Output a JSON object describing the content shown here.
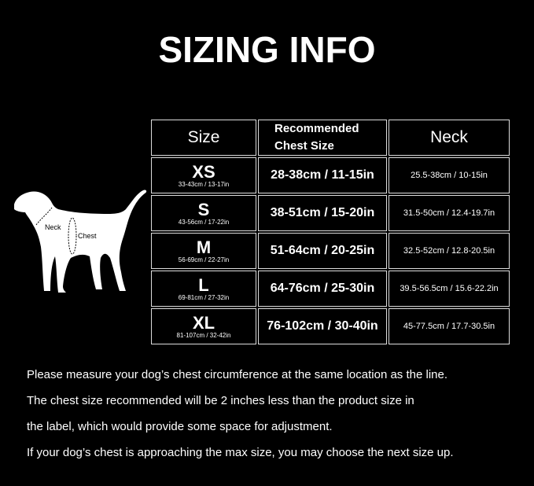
{
  "title": "SIZING INFO",
  "table": {
    "headers": [
      "Size",
      "Recommended Chest Size",
      "Neck"
    ],
    "header_recommended_line1": "Recommended",
    "header_recommended_line2": "Chest Size",
    "rows": [
      {
        "size": "XS",
        "range": "33-43cm / 13-17in",
        "chest": "28-38cm / 11-15in",
        "neck": "25.5-38cm / 10-15in"
      },
      {
        "size": "S",
        "range": "43-56cm / 17-22in",
        "chest": "38-51cm / 15-20in",
        "neck": "31.5-50cm / 12.4-19.7in"
      },
      {
        "size": "M",
        "range": "56-69cm / 22-27in",
        "chest": "51-64cm / 20-25in",
        "neck": "32.5-52cm / 12.8-20.5in"
      },
      {
        "size": "L",
        "range": "69-81cm / 27-32in",
        "chest": "64-76cm / 25-30in",
        "neck": "39.5-56.5cm / 15.6-22.2in"
      },
      {
        "size": "XL",
        "range": "81-107cm / 32-42in",
        "chest": "76-102cm / 30-40in",
        "neck": "45-77.5cm / 17.7-30.5in"
      }
    ]
  },
  "dog": {
    "neck_label": "Neck",
    "chest_label": "Chest"
  },
  "notes": [
    "Please measure your dog’s chest circumference at the same location as the line.",
    "The chest size recommended will be 2 inches less than the product size in",
    "the label, which would provide some space for adjustment.",
    "If your dog’s chest is approaching the max size, you may choose the next size up."
  ]
}
